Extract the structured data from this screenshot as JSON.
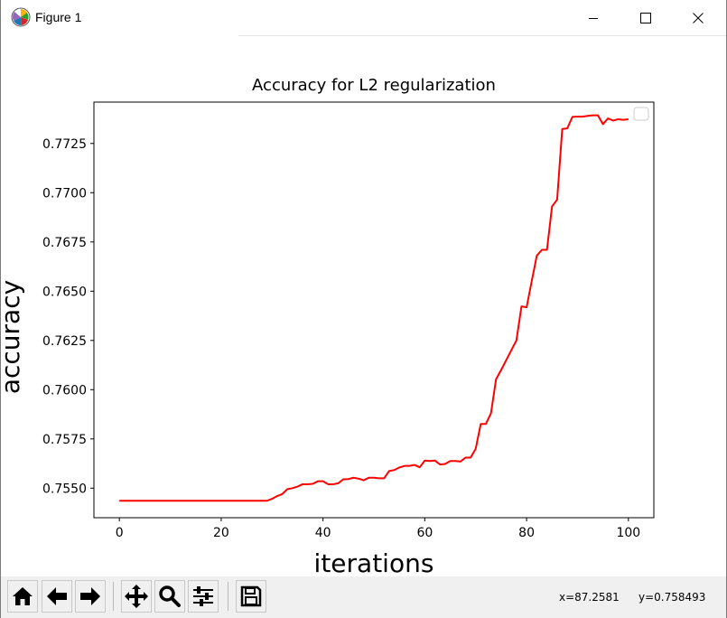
{
  "window": {
    "title": "Figure 1",
    "controls": [
      "minimize-icon",
      "maximize-icon",
      "close-icon"
    ]
  },
  "toolbar": {
    "buttons": [
      "home-icon",
      "back-arrow-icon",
      "forward-arrow-icon",
      "pan-icon",
      "zoom-icon",
      "configure-subplots-icon",
      "save-icon"
    ],
    "coord_x": "x=87.2581",
    "coord_y": "y=0.758493"
  },
  "chart_data": {
    "type": "line",
    "title": "Accuracy for L2 regularization",
    "xlabel": "iterations",
    "ylabel": "accuracy",
    "xlim": [
      -5,
      105
    ],
    "ylim": [
      0.7535,
      0.7746
    ],
    "xticks": [
      0,
      20,
      40,
      60,
      80,
      100
    ],
    "xtick_labels": [
      "0",
      "20",
      "40",
      "60",
      "80",
      "100"
    ],
    "yticks": [
      0.755,
      0.7575,
      0.76,
      0.7625,
      0.765,
      0.7675,
      0.77,
      0.7725
    ],
    "ytick_labels": [
      "0.7550",
      "0.7575",
      "0.7600",
      "0.7625",
      "0.7650",
      "0.7675",
      "0.7700",
      "0.7725"
    ],
    "grid": false,
    "legend": "top-right",
    "legend_entries": [],
    "series": [
      {
        "color": "#ff0000",
        "x": [
          0,
          1,
          2,
          3,
          4,
          5,
          6,
          7,
          8,
          9,
          10,
          11,
          12,
          13,
          14,
          15,
          16,
          17,
          18,
          19,
          20,
          21,
          22,
          23,
          24,
          25,
          26,
          27,
          28,
          29,
          30,
          31,
          32,
          33,
          34,
          35,
          36,
          37,
          38,
          39,
          40,
          41,
          42,
          43,
          44,
          45,
          46,
          47,
          48,
          49,
          50,
          51,
          52,
          53,
          54,
          55,
          56,
          57,
          58,
          59,
          60,
          61,
          62,
          63,
          64,
          65,
          66,
          67,
          68,
          69,
          70,
          71,
          72,
          73,
          74,
          75,
          76,
          77,
          78,
          79,
          80,
          81,
          82,
          83,
          84,
          85,
          86,
          87,
          88,
          89,
          90,
          91,
          92,
          93,
          94,
          95,
          96,
          97,
          98,
          99,
          100
        ],
        "values": [
          0.75436,
          0.75436,
          0.75436,
          0.75436,
          0.75436,
          0.75436,
          0.75436,
          0.75436,
          0.75436,
          0.75436,
          0.75436,
          0.75436,
          0.75436,
          0.75436,
          0.75436,
          0.75436,
          0.75436,
          0.75436,
          0.75436,
          0.75436,
          0.75436,
          0.75436,
          0.75436,
          0.75436,
          0.75436,
          0.75436,
          0.75436,
          0.75436,
          0.75436,
          0.75436,
          0.75446,
          0.7546,
          0.7547,
          0.75495,
          0.755,
          0.75508,
          0.7552,
          0.7552,
          0.75522,
          0.75535,
          0.75535,
          0.7552,
          0.7552,
          0.75525,
          0.75545,
          0.75546,
          0.75553,
          0.75548,
          0.7554,
          0.75553,
          0.75553,
          0.7555,
          0.7555,
          0.75587,
          0.75592,
          0.75605,
          0.75613,
          0.75613,
          0.75618,
          0.75606,
          0.7564,
          0.75638,
          0.7564,
          0.7562,
          0.75623,
          0.75638,
          0.75638,
          0.75635,
          0.75655,
          0.75655,
          0.757,
          0.75826,
          0.75826,
          0.7588,
          0.76053,
          0.761,
          0.7615,
          0.762,
          0.7625,
          0.76423,
          0.76418,
          0.7655,
          0.7668,
          0.7671,
          0.7671,
          0.7693,
          0.76965,
          0.77323,
          0.77327,
          0.77385,
          0.77386,
          0.77386,
          0.7739,
          0.77393,
          0.77393,
          0.77348,
          0.77377,
          0.77366,
          0.77373,
          0.7737,
          0.77373
        ]
      }
    ]
  }
}
